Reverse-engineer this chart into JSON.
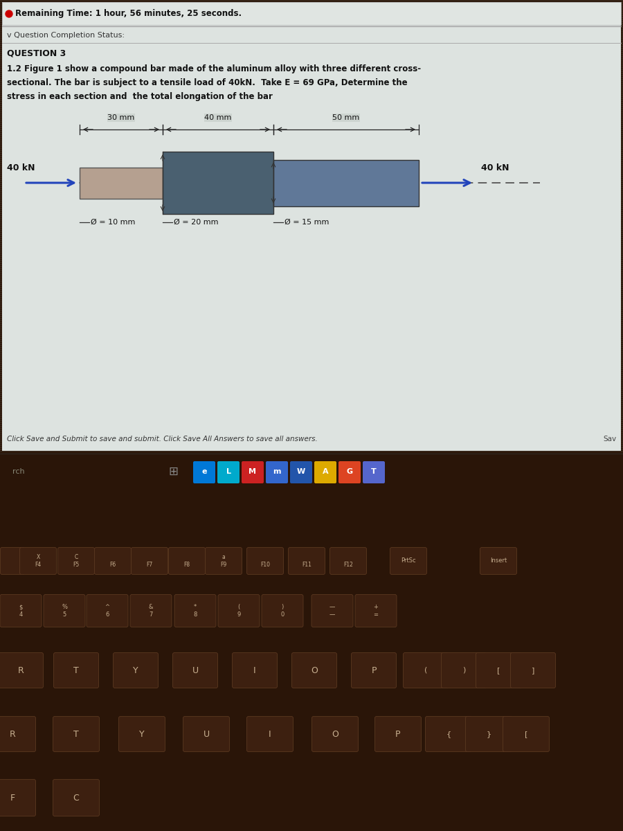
{
  "remaining_time": "Remaining Time: 1 hour, 56 minutes, 25 seconds.",
  "question_completion": "v Question Completion Status:",
  "question_number": "QUESTION 3",
  "question_text_line1": "1.2 Figure 1 show a compound bar made of the aluminum alloy with three different cross-",
  "question_text_line2": "sectional. The bar is subject to a tensile load of 40kN.  Take E = 69 GPa, Determine the",
  "question_text_line3": "stress in each section and  the total elongation of the bar",
  "section_lengths": [
    "30 mm",
    "40 mm",
    "50 mm"
  ],
  "section_diameters": [
    "Ø = 10 mm",
    "Ø = 20 mm",
    "Ø = 15 mm"
  ],
  "load_label": "40 kN",
  "screen_bg": "#cdd4d0",
  "bar_color_1": "#b5a090",
  "bar_color_2": "#4a6070",
  "bar_color_3": "#607898",
  "footer_text": "Click Save and Submit to save and submit. Click Save All Answers to save all answers.",
  "save_text": "Sav",
  "search_text": "rch",
  "keyboard_bg": "#2a1508",
  "key_color": "#3d2010",
  "key_edge": "#5a3820",
  "key_text": "#c8b090",
  "taskbar_bg": "#1a0e08"
}
